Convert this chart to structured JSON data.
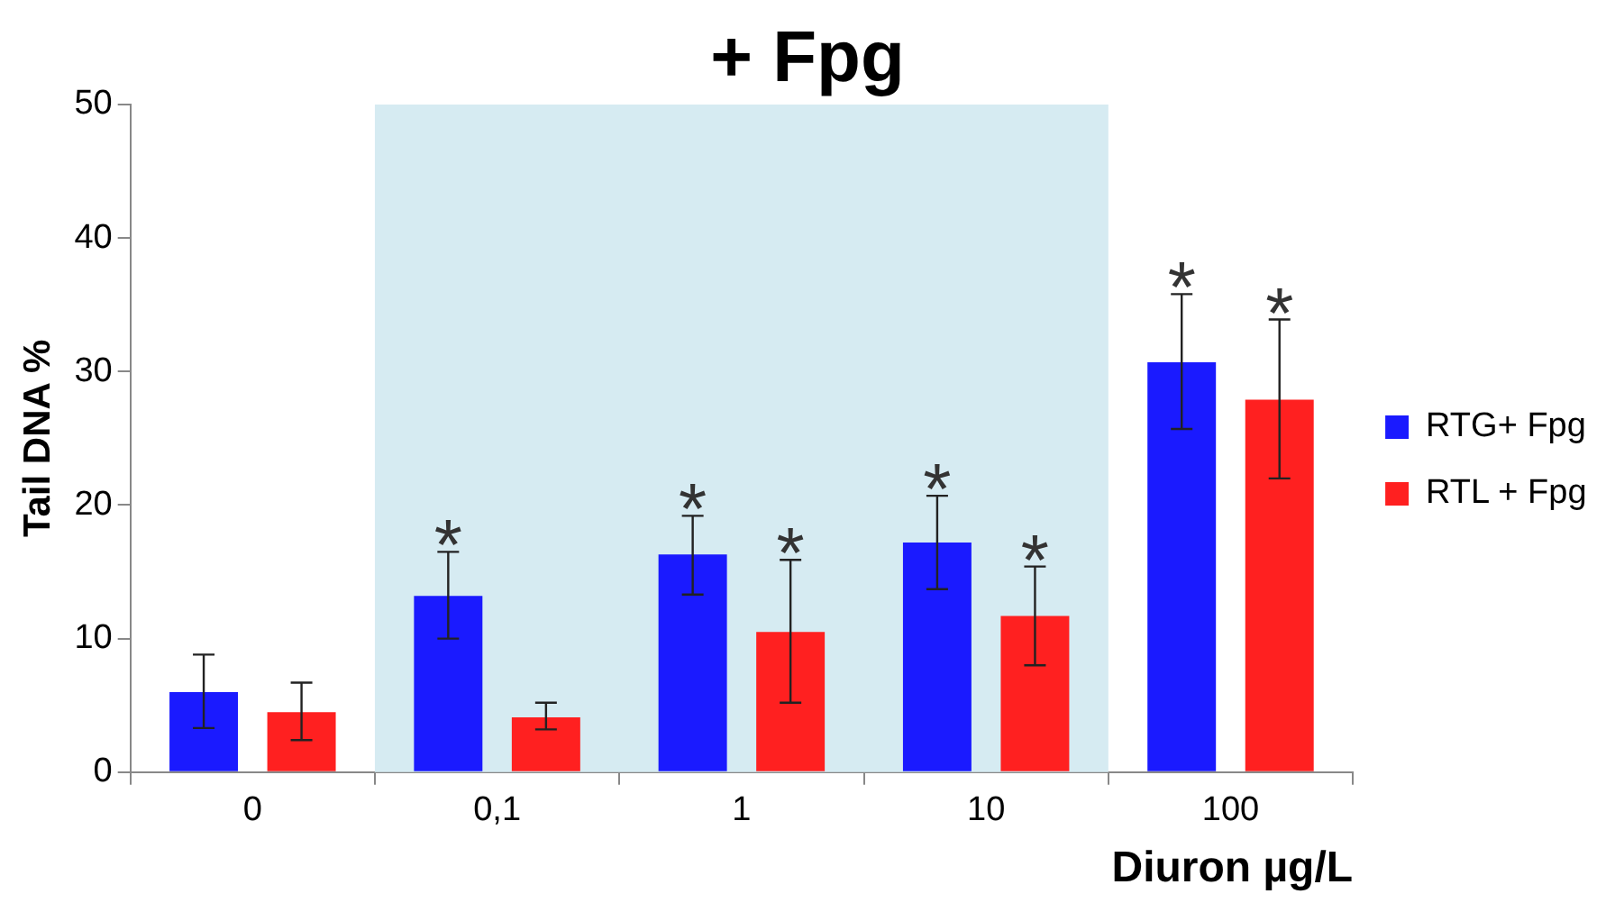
{
  "chart_data": {
    "type": "bar",
    "title": "+ Fpg",
    "xlabel": "Diuron µg/L",
    "ylabel": "Tail DNA %",
    "categories": [
      "0",
      "0,1",
      "1",
      "10",
      "100"
    ],
    "series": [
      {
        "name": "RTG+ Fpg",
        "color": "#1a1aff",
        "values": [
          6.0,
          13.2,
          16.3,
          17.2,
          30.7
        ],
        "errors": [
          [
            3.3,
            8.8
          ],
          [
            10.0,
            16.5
          ],
          [
            13.3,
            19.2
          ],
          [
            13.7,
            20.7
          ],
          [
            25.7,
            35.8
          ]
        ],
        "value_labels": [
          null,
          "*",
          "*",
          "*",
          "*"
        ]
      },
      {
        "name": "RTL + Fpg",
        "color": "#ff2020",
        "values": [
          4.5,
          4.1,
          10.5,
          11.7,
          27.9
        ],
        "errors": [
          [
            2.4,
            6.7
          ],
          [
            3.2,
            5.2
          ],
          [
            5.2,
            15.9
          ],
          [
            8.0,
            15.4
          ],
          [
            22.0,
            33.9
          ]
        ],
        "value_labels": [
          null,
          null,
          "*",
          "*",
          "*"
        ]
      }
    ],
    "bands": [
      {
        "axis": "x",
        "from": "0,1",
        "to": "10",
        "color": "#d6ebf2"
      }
    ],
    "ylim": [
      0,
      50
    ],
    "yticks": [
      0,
      10,
      20,
      30,
      40,
      50
    ],
    "grid": false,
    "legend": "right"
  }
}
